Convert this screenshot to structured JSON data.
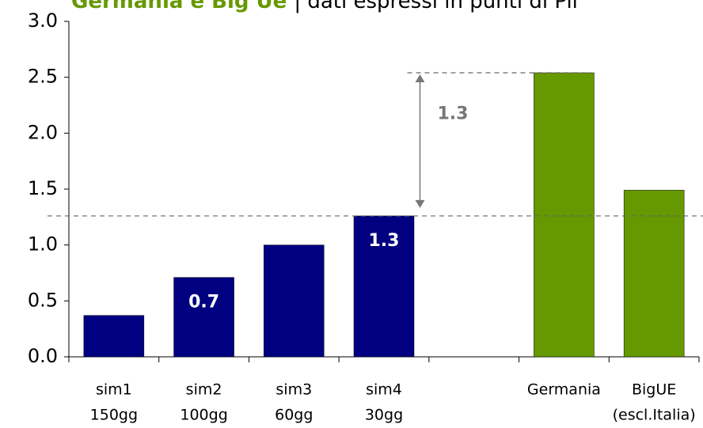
{
  "chart_data": {
    "type": "bar",
    "title": "Germania e Big Ue",
    "subtitle": "| dati espressi in punti di Pil",
    "categories": [
      [
        "sim1",
        "150gg"
      ],
      [
        "sim2",
        "100gg"
      ],
      [
        "sim3",
        "60gg"
      ],
      [
        "sim4",
        "30gg"
      ],
      null,
      [
        "Germania"
      ],
      [
        "BigUE",
        "(escl.Italia)"
      ]
    ],
    "values": [
      0.37,
      0.71,
      1.0,
      1.26,
      null,
      2.54,
      1.49
    ],
    "value_labels": [
      null,
      "0.7",
      null,
      "1.3",
      null,
      null,
      null
    ],
    "colors": [
      "#000080",
      "#000080",
      "#000080",
      "#000080",
      null,
      "#669900",
      "#669900"
    ],
    "annotation": "1.3",
    "ylim": [
      0,
      3
    ],
    "yticks": [
      {
        "value": 0,
        "label": "0.0"
      },
      {
        "value": 0.5,
        "label": "0.5"
      },
      {
        "value": 1,
        "label": "1.0"
      },
      {
        "value": 1.5,
        "label": "1.5"
      },
      {
        "value": 2,
        "label": "2.0"
      },
      {
        "value": 2.5,
        "label": "2.5"
      },
      {
        "value": 3,
        "label": "3.0"
      }
    ],
    "grid": false
  }
}
